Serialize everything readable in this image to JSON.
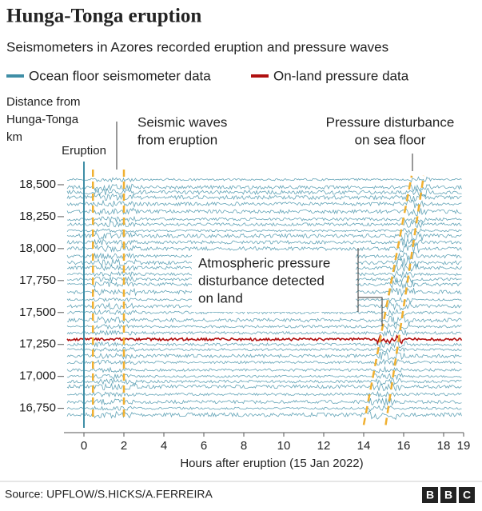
{
  "chart_data": {
    "type": "seismic",
    "title": "Hunga-Tonga eruption",
    "subtitle": "Seismometers in Azores recorded eruption and pressure waves",
    "y_label": [
      "Distance from",
      "Hunga-Tonga",
      "km"
    ],
    "x_label": "Hours after eruption (15 Jan 2022)",
    "source": "Source: UPFLOW/S.HICKS/A.FERREIRA",
    "series": [
      {
        "name": "Ocean floor seismometer data",
        "color": "#3f8ea6",
        "values": [
          16700,
          16750,
          16800,
          16860,
          16920,
          16960,
          17000,
          17050,
          17110,
          17160,
          17210,
          17250,
          17340,
          17390,
          17440,
          17500,
          17550,
          17600,
          17660,
          17720,
          17760,
          17800,
          17850,
          17890,
          17940,
          18000,
          18050,
          18100,
          18140,
          18190,
          18230,
          18290,
          18350,
          18400,
          18440,
          18480,
          18540
        ]
      },
      {
        "name": "On-land pressure data",
        "color": "#b01010",
        "values": [
          17290
        ]
      }
    ],
    "xlim": [
      -1,
      19
    ],
    "ylim": [
      16560,
      18600
    ],
    "xticks": [
      0,
      2,
      4,
      6,
      8,
      10,
      12,
      14,
      16,
      18,
      19
    ],
    "yticks": [
      {
        "value": 16750,
        "label": "16,750"
      },
      {
        "value": 17000,
        "label": "17,000"
      },
      {
        "value": 17250,
        "label": "17,250"
      },
      {
        "value": 17500,
        "label": "17,500"
      },
      {
        "value": 17750,
        "label": "17,750"
      },
      {
        "value": 18000,
        "label": "18,000"
      },
      {
        "value": 18250,
        "label": "18,250"
      },
      {
        "value": 18500,
        "label": "18,500"
      }
    ],
    "eruption": {
      "label": "Eruption",
      "x": 0
    },
    "seismic_waves": {
      "label": [
        "Seismic waves",
        "from eruption"
      ],
      "x": [
        0.45,
        2.0
      ]
    },
    "pressure_sea_floor": {
      "label": [
        "Pressure disturbance",
        "on sea floor"
      ],
      "x_start": [
        14.0,
        15.1
      ],
      "x_end": [
        16.4,
        17.0
      ]
    },
    "pressure_land": {
      "label": [
        "Atmospheric pressure",
        "disturbance detected",
        "on land"
      ]
    }
  }
}
